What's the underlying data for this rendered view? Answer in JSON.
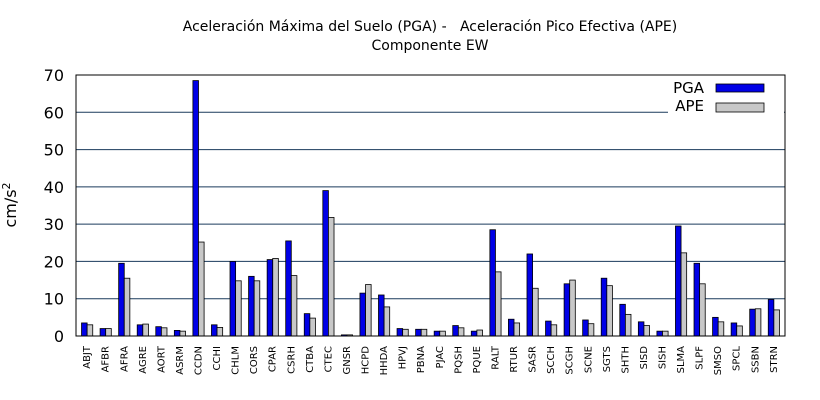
{
  "chart_data": {
    "type": "bar",
    "title": "Aceleración Máxima del Suelo (PGA) -   Aceleración Pico Efectiva (APE)",
    "subtitle": "Componente EW",
    "ylabel": "cm/s",
    "ylabel_sup": "2",
    "xlabel": "",
    "ylim": [
      0,
      70
    ],
    "yticks": [
      0,
      10,
      20,
      30,
      40,
      50,
      60,
      70
    ],
    "grid": true,
    "legend_position": "top-right",
    "categories": [
      "ABJT",
      "AFBR",
      "AFRA",
      "AGRE",
      "AORT",
      "ASRM",
      "CCDN",
      "CCHI",
      "CHLM",
      "CORS",
      "CPAR",
      "CSRH",
      "CTBA",
      "CTEC",
      "GNSR",
      "HCPD",
      "HHDA",
      "HPVJ",
      "PBNA",
      "PJAC",
      "PQSH",
      "PQUE",
      "RALT",
      "RTUR",
      "SASR",
      "SCCH",
      "SCGH",
      "SCNE",
      "SGTS",
      "SHTH",
      "SISD",
      "SISH",
      "SLMA",
      "SLPF",
      "SMSO",
      "SPCL",
      "SSBN",
      "STRN"
    ],
    "series": [
      {
        "name": "PGA",
        "color": "#0000e6",
        "values": [
          3.5,
          2.0,
          19.5,
          3.0,
          2.5,
          1.5,
          68.5,
          3.0,
          20.0,
          16.0,
          20.5,
          25.5,
          6.0,
          39.0,
          0.3,
          11.5,
          11.0,
          2.0,
          1.8,
          1.3,
          2.8,
          1.3,
          28.5,
          4.5,
          22.0,
          4.0,
          14.0,
          4.3,
          15.5,
          8.5,
          3.8,
          1.3,
          29.5,
          19.5,
          5.0,
          3.5,
          7.2,
          9.8
        ]
      },
      {
        "name": "APE",
        "color": "#c8c8c8",
        "values": [
          3.0,
          2.0,
          15.5,
          3.2,
          2.2,
          1.3,
          25.2,
          2.3,
          14.8,
          14.8,
          20.8,
          16.2,
          4.8,
          31.8,
          0.3,
          13.8,
          7.8,
          1.8,
          1.8,
          1.3,
          2.2,
          1.6,
          17.2,
          3.5,
          12.8,
          3.0,
          15.0,
          3.3,
          13.5,
          5.8,
          2.8,
          1.3,
          22.3,
          14.0,
          3.8,
          2.7,
          7.3,
          7.0
        ]
      }
    ]
  }
}
